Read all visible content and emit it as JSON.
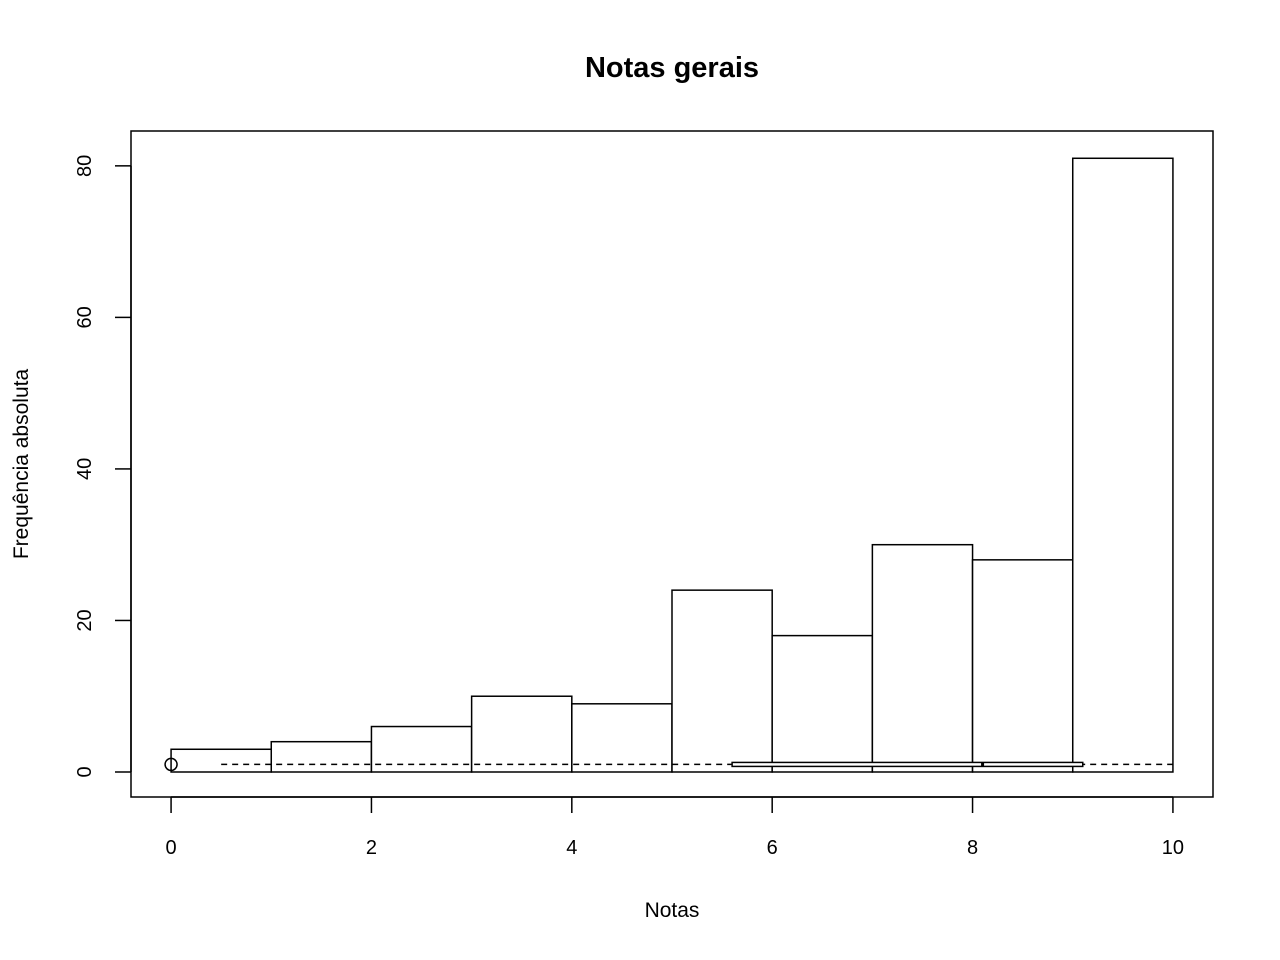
{
  "chart_data": {
    "type": "bar",
    "title": "Notas gerais",
    "xlabel": "Notas",
    "ylabel": "Frequência absoluta",
    "bins": [
      {
        "from": 0,
        "to": 1,
        "count": 3
      },
      {
        "from": 1,
        "to": 2,
        "count": 4
      },
      {
        "from": 2,
        "to": 3,
        "count": 6
      },
      {
        "from": 3,
        "to": 4,
        "count": 10
      },
      {
        "from": 4,
        "to": 5,
        "count": 9
      },
      {
        "from": 5,
        "to": 6,
        "count": 24
      },
      {
        "from": 6,
        "to": 7,
        "count": 18
      },
      {
        "from": 7,
        "to": 8,
        "count": 30
      },
      {
        "from": 8,
        "to": 9,
        "count": 28
      },
      {
        "from": 9,
        "to": 10,
        "count": 81
      }
    ],
    "xlim": [
      -0.4,
      10.4
    ],
    "ylim": [
      -3.3,
      84.6
    ],
    "xticks": [
      "0",
      "2",
      "4",
      "6",
      "8",
      "10"
    ],
    "yticks": [
      "0",
      "20",
      "40",
      "60",
      "80"
    ],
    "boxplot": {
      "y": 1,
      "box_from": 5.6,
      "box_to": 9.1,
      "median": 8.1,
      "whisker_from": 0.5,
      "whisker_to": 10,
      "outliers": [
        0
      ]
    },
    "grid": false,
    "legend": "none"
  }
}
